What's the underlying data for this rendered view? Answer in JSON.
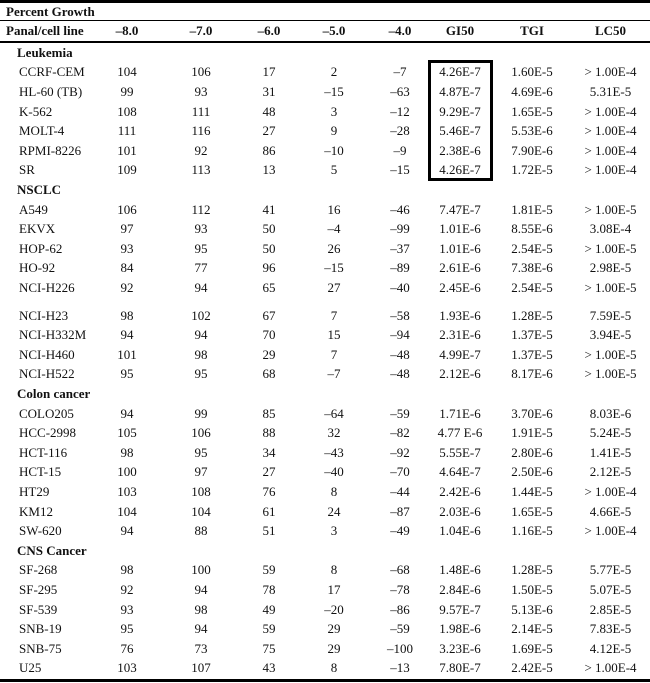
{
  "title": "Percent Growth",
  "columns": [
    "Panal/cell line",
    "–8.0",
    "–7.0",
    "–6.0",
    "–5.0",
    "–4.0",
    "GI50",
    "TGI",
    "LC50"
  ],
  "highlight": {
    "group": "Leukemia",
    "column": "GI50"
  },
  "groups": [
    {
      "name": "Leukemia",
      "rows": [
        [
          "CCRF-CEM",
          "104",
          "106",
          "17",
          "2",
          "–7",
          "4.26E-7",
          "1.60E-5",
          "> 1.00E-4"
        ],
        [
          "HL-60 (TB)",
          "99",
          "93",
          "31",
          "–15",
          "–63",
          "4.87E-7",
          "4.69E-6",
          "5.31E-5"
        ],
        [
          "K-562",
          "108",
          "111",
          "48",
          "3",
          "–12",
          "9.29E-7",
          "1.65E-5",
          "> 1.00E-4"
        ],
        [
          "MOLT-4",
          "111",
          "116",
          "27",
          "9",
          "–28",
          "5.46E-7",
          "5.53E-6",
          "> 1.00E-4"
        ],
        [
          "RPMI-8226",
          "101",
          "92",
          "86",
          "–10",
          "–9",
          "2.38E-6",
          "7.90E-6",
          "> 1.00E-4"
        ],
        [
          "SR",
          "109",
          "113",
          "13",
          "5",
          "–15",
          "4.26E-7",
          "1.72E-5",
          "> 1.00E-4"
        ]
      ]
    },
    {
      "name": "NSCLC",
      "rows": [
        [
          "A549",
          "106",
          "112",
          "41",
          "16",
          "–46",
          "7.47E-7",
          "1.81E-5",
          "> 1.00E-5"
        ],
        [
          "EKVX",
          "97",
          "93",
          "50",
          "–4",
          "–99",
          "1.01E-6",
          "8.55E-6",
          "3.08E-4"
        ],
        [
          "HOP-62",
          "93",
          "95",
          "50",
          "26",
          "–37",
          "1.01E-6",
          "2.54E-5",
          "> 1.00E-5"
        ],
        [
          "HO-92",
          "84",
          "77",
          "96",
          "–15",
          "–89",
          "2.61E-6",
          "7.38E-6",
          "2.98E-5"
        ],
        [
          "NCI-H226",
          "92",
          "94",
          "65",
          "27",
          "–40",
          "2.45E-6",
          "2.54E-5",
          "> 1.00E-5"
        ],
        [
          "NCI-H23",
          "98",
          "102",
          "67",
          "7",
          "–58",
          "1.93E-6",
          "1.28E-5",
          "7.59E-5"
        ],
        [
          "NCI-H332M",
          "94",
          "94",
          "70",
          "15",
          "–94",
          "2.31E-6",
          "1.37E-5",
          "3.94E-5"
        ],
        [
          "NCI-H460",
          "101",
          "98",
          "29",
          "7",
          "–48",
          "4.99E-7",
          "1.37E-5",
          "> 1.00E-5"
        ],
        [
          "NCI-H522",
          "95",
          "95",
          "68",
          "–7",
          "–48",
          "2.12E-6",
          "8.17E-6",
          "> 1.00E-5"
        ]
      ]
    },
    {
      "name": "Colon cancer",
      "rows": [
        [
          "COLO205",
          "94",
          "99",
          "85",
          "–64",
          "–59",
          "1.71E-6",
          "3.70E-6",
          "8.03E-6"
        ],
        [
          "HCC-2998",
          "105",
          "106",
          "88",
          "32",
          "–82",
          "4.77 E-6",
          "1.91E-5",
          "5.24E-5"
        ],
        [
          "HCT-116",
          "98",
          "95",
          "34",
          "–43",
          "–92",
          "5.55E-7",
          "2.80E-6",
          "1.41E-5"
        ],
        [
          "HCT-15",
          "100",
          "97",
          "27",
          "–40",
          "–70",
          "4.64E-7",
          "2.50E-6",
          "2.12E-5"
        ],
        [
          "HT29",
          "103",
          "108",
          "76",
          "8",
          "–44",
          "2.42E-6",
          "1.44E-5",
          "> 1.00E-4"
        ],
        [
          "KM12",
          "104",
          "104",
          "61",
          "24",
          "–87",
          "2.03E-6",
          "1.65E-5",
          "4.66E-5"
        ],
        [
          "SW-620",
          "94",
          "88",
          "51",
          "3",
          "–49",
          "1.04E-6",
          "1.16E-5",
          "> 1.00E-4"
        ]
      ]
    },
    {
      "name": "CNS Cancer",
      "rows": [
        [
          "SF-268",
          "98",
          "100",
          "59",
          "8",
          "–68",
          "1.48E-6",
          "1.28E-5",
          "5.77E-5"
        ],
        [
          "SF-295",
          "92",
          "94",
          "78",
          "17",
          "–78",
          "2.84E-6",
          "1.50E-5",
          "5.07E-5"
        ],
        [
          "SF-539",
          "93",
          "98",
          "49",
          "–20",
          "–86",
          "9.57E-7",
          "5.13E-6",
          "2.85E-5"
        ],
        [
          "SNB-19",
          "95",
          "94",
          "59",
          "29",
          "–59",
          "1.98E-6",
          "2.14E-5",
          "7.83E-5"
        ],
        [
          "SNB-75",
          "76",
          "73",
          "75",
          "29",
          "–100",
          "3.23E-6",
          "1.69E-5",
          "4.12E-5"
        ],
        [
          "U25",
          "103",
          "107",
          "43",
          "8",
          "–13",
          "7.80E-7",
          "2.42E-5",
          "> 1.00E-4"
        ]
      ]
    }
  ]
}
